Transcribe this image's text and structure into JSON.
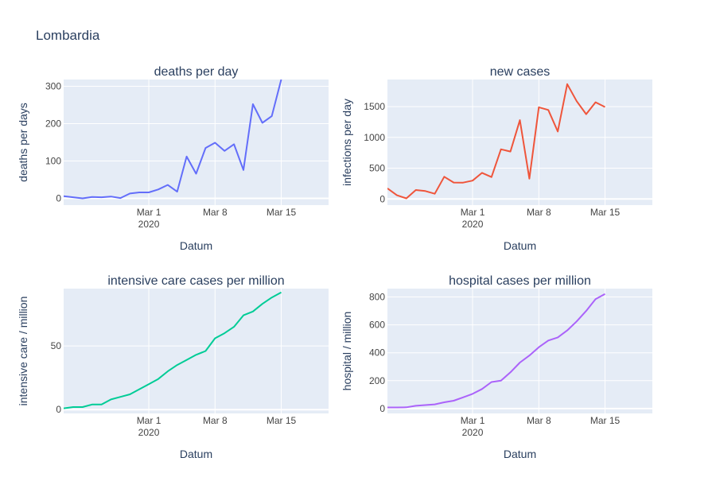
{
  "figure": {
    "title": "Lombardia"
  },
  "colors": {
    "plot_bg": "#e5ecf6",
    "grid": "#ffffff",
    "text": "#2a3f5f",
    "tick_text": "#444444"
  },
  "chart_data": [
    {
      "type": "line",
      "title": "deaths per day",
      "xlabel": "Datum",
      "ylabel": "deaths per days",
      "x_tick_labels": [
        "Mar 1\n2020",
        "Mar 8",
        "Mar 15"
      ],
      "y_ticks": [
        0,
        100,
        200,
        300
      ],
      "ylim": [
        -18,
        318
      ],
      "grid": true,
      "series": [
        {
          "color": "#636efa",
          "x": [
            "2020-02-21",
            "2020-02-22",
            "2020-02-23",
            "2020-02-24",
            "2020-02-25",
            "2020-02-26",
            "2020-02-27",
            "2020-02-28",
            "2020-02-29",
            "2020-03-01",
            "2020-03-02",
            "2020-03-03",
            "2020-03-04",
            "2020-03-05",
            "2020-03-06",
            "2020-03-07",
            "2020-03-08",
            "2020-03-09",
            "2020-03-10",
            "2020-03-11",
            "2020-03-12",
            "2020-03-13",
            "2020-03-14",
            "2020-03-15",
            "2020-03-16",
            "2020-03-17",
            "2020-03-18",
            "2020-03-19",
            "2020-03-20"
          ],
          "values": [
            6,
            3,
            0,
            4,
            3,
            5,
            1,
            13,
            16,
            16,
            24,
            36,
            18,
            112,
            66,
            135,
            149,
            127,
            145,
            76,
            252,
            202,
            220,
            318,
            null,
            null,
            null,
            null,
            null
          ]
        }
      ]
    },
    {
      "type": "line",
      "title": "new cases",
      "xlabel": "Datum",
      "ylabel": "infections per day",
      "x_tick_labels": [
        "Mar 1\n2020",
        "Mar 8",
        "Mar 15"
      ],
      "y_ticks": [
        0,
        500,
        1000,
        1500
      ],
      "ylim": [
        -100,
        1940
      ],
      "grid": true,
      "series": [
        {
          "color": "#ef553b",
          "x": [
            "2020-02-21",
            "2020-02-22",
            "2020-02-23",
            "2020-02-24",
            "2020-02-25",
            "2020-02-26",
            "2020-02-27",
            "2020-02-28",
            "2020-02-29",
            "2020-03-01",
            "2020-03-02",
            "2020-03-03",
            "2020-03-04",
            "2020-03-05",
            "2020-03-06",
            "2020-03-07",
            "2020-03-08",
            "2020-03-09",
            "2020-03-10",
            "2020-03-11",
            "2020-03-12",
            "2020-03-13",
            "2020-03-14",
            "2020-03-15",
            "2020-03-16",
            "2020-03-17",
            "2020-03-18",
            "2020-03-19",
            "2020-03-20"
          ],
          "values": [
            172,
            60,
            10,
            145,
            128,
            84,
            361,
            267,
            266,
            298,
            424,
            356,
            807,
            770,
            1280,
            330,
            1489,
            1445,
            1095,
            1865,
            1587,
            1377,
            1571,
            1493,
            null,
            null,
            null,
            null,
            null
          ]
        }
      ]
    },
    {
      "type": "line",
      "title": "intensive care cases per million",
      "xlabel": "Datum",
      "ylabel": "intensive care / million",
      "x_tick_labels": [
        "Mar 1\n2020",
        "Mar 8",
        "Mar 15"
      ],
      "y_ticks": [
        0,
        50
      ],
      "ylim": [
        -3,
        95
      ],
      "grid": true,
      "series": [
        {
          "color": "#00cc96",
          "x": [
            "2020-02-21",
            "2020-02-22",
            "2020-02-23",
            "2020-02-24",
            "2020-02-25",
            "2020-02-26",
            "2020-02-27",
            "2020-02-28",
            "2020-02-29",
            "2020-03-01",
            "2020-03-02",
            "2020-03-03",
            "2020-03-04",
            "2020-03-05",
            "2020-03-06",
            "2020-03-07",
            "2020-03-08",
            "2020-03-09",
            "2020-03-10",
            "2020-03-11",
            "2020-03-12",
            "2020-03-13",
            "2020-03-14",
            "2020-03-15",
            "2020-03-16",
            "2020-03-17",
            "2020-03-18",
            "2020-03-19",
            "2020-03-20"
          ],
          "values": [
            1,
            2,
            2,
            4,
            4,
            8,
            10,
            12,
            16,
            20,
            24,
            30,
            35,
            39,
            43,
            46,
            56,
            60,
            65,
            74,
            77,
            83,
            88,
            92,
            null,
            null,
            null,
            null,
            null
          ]
        }
      ]
    },
    {
      "type": "line",
      "title": "hospital cases per million",
      "xlabel": "Datum",
      "ylabel": "hospital / million",
      "x_tick_labels": [
        "Mar 1\n2020",
        "Mar 8",
        "Mar 15"
      ],
      "y_ticks": [
        0,
        200,
        400,
        600,
        800
      ],
      "ylim": [
        -35,
        860
      ],
      "grid": true,
      "series": [
        {
          "color": "#ab63fa",
          "x": [
            "2020-02-21",
            "2020-02-22",
            "2020-02-23",
            "2020-02-24",
            "2020-02-25",
            "2020-02-26",
            "2020-02-27",
            "2020-02-28",
            "2020-02-29",
            "2020-03-01",
            "2020-03-02",
            "2020-03-03",
            "2020-03-04",
            "2020-03-05",
            "2020-03-06",
            "2020-03-07",
            "2020-03-08",
            "2020-03-09",
            "2020-03-10",
            "2020-03-11",
            "2020-03-12",
            "2020-03-13",
            "2020-03-14",
            "2020-03-15",
            "2020-03-16",
            "2020-03-17",
            "2020-03-18",
            "2020-03-19",
            "2020-03-20"
          ],
          "values": [
            8,
            8,
            9,
            20,
            25,
            30,
            45,
            56,
            80,
            105,
            140,
            190,
            200,
            260,
            330,
            380,
            440,
            488,
            510,
            560,
            625,
            700,
            785,
            822,
            null,
            null,
            null,
            null,
            null
          ]
        }
      ]
    }
  ]
}
